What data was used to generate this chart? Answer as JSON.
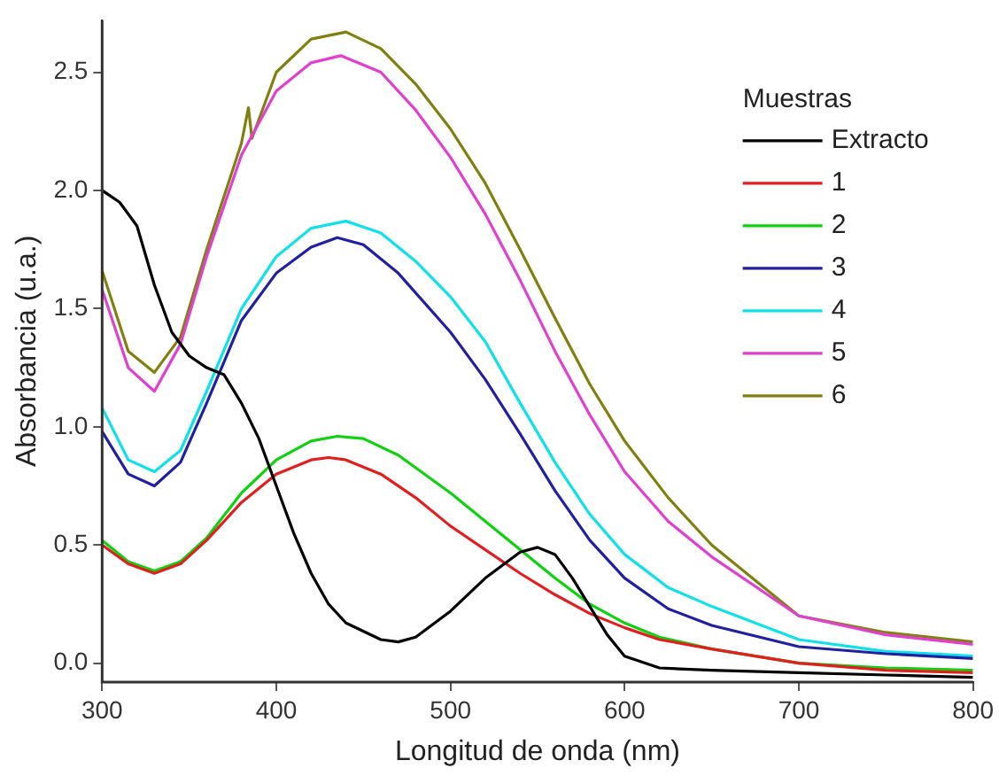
{
  "chart_data": {
    "type": "line",
    "xlabel": "Longitud de onda (nm)",
    "ylabel": "Absorbancia (u.a.)",
    "legend_title": "Muestras",
    "legend": "top right",
    "grid": false,
    "marker": "none",
    "line_style": "solid",
    "xlim": [
      300,
      800
    ],
    "xticks": [
      300,
      400,
      500,
      600,
      700,
      800
    ],
    "ylim": [
      -0.08,
      2.72
    ],
    "yticks": [
      {
        "value": 0,
        "label": "0.0"
      },
      0.5,
      {
        "value": 1,
        "label": "1.0"
      },
      1.5,
      {
        "value": 2,
        "label": "2.0"
      },
      2.5
    ],
    "series": [
      {
        "name": "Extracto",
        "color": "#000000",
        "x": [
          300,
          310,
          320,
          330,
          340,
          350,
          360,
          370,
          380,
          390,
          400,
          410,
          420,
          430,
          440,
          460,
          470,
          480,
          500,
          520,
          540,
          550,
          560,
          570,
          580,
          590,
          600,
          620,
          650,
          700,
          750,
          800
        ],
        "values": [
          2.0,
          1.95,
          1.85,
          1.6,
          1.4,
          1.3,
          1.25,
          1.22,
          1.1,
          0.95,
          0.75,
          0.55,
          0.38,
          0.25,
          0.17,
          0.1,
          0.09,
          0.11,
          0.22,
          0.36,
          0.47,
          0.49,
          0.46,
          0.36,
          0.24,
          0.12,
          0.03,
          -0.02,
          -0.03,
          -0.04,
          -0.05,
          -0.06
        ]
      },
      {
        "name": "1",
        "color": "#e02020",
        "x": [
          300,
          315,
          330,
          345,
          360,
          380,
          400,
          420,
          430,
          440,
          460,
          480,
          500,
          520,
          540,
          560,
          580,
          600,
          620,
          650,
          700,
          750,
          800
        ],
        "values": [
          0.5,
          0.42,
          0.38,
          0.42,
          0.52,
          0.68,
          0.8,
          0.86,
          0.87,
          0.86,
          0.8,
          0.7,
          0.58,
          0.48,
          0.38,
          0.29,
          0.21,
          0.15,
          0.1,
          0.06,
          0.0,
          -0.03,
          -0.04
        ]
      },
      {
        "name": "2",
        "color": "#10d010",
        "x": [
          300,
          315,
          330,
          345,
          360,
          380,
          400,
          420,
          435,
          450,
          470,
          500,
          520,
          540,
          560,
          580,
          600,
          620,
          650,
          700,
          750,
          800
        ],
        "values": [
          0.52,
          0.43,
          0.39,
          0.43,
          0.53,
          0.72,
          0.86,
          0.94,
          0.96,
          0.95,
          0.88,
          0.72,
          0.6,
          0.48,
          0.36,
          0.25,
          0.17,
          0.11,
          0.06,
          0.0,
          -0.02,
          -0.03
        ]
      },
      {
        "name": "3",
        "color": "#2020a0",
        "x": [
          300,
          315,
          330,
          345,
          360,
          380,
          400,
          420,
          435,
          450,
          470,
          500,
          520,
          540,
          560,
          580,
          600,
          625,
          650,
          700,
          750,
          800
        ],
        "values": [
          0.98,
          0.8,
          0.75,
          0.85,
          1.1,
          1.45,
          1.65,
          1.76,
          1.8,
          1.77,
          1.65,
          1.4,
          1.2,
          0.97,
          0.73,
          0.52,
          0.36,
          0.23,
          0.16,
          0.07,
          0.04,
          0.02
        ]
      },
      {
        "name": "4",
        "color": "#10e0e8",
        "x": [
          300,
          315,
          330,
          345,
          360,
          380,
          400,
          420,
          440,
          460,
          480,
          500,
          520,
          540,
          560,
          580,
          600,
          625,
          650,
          700,
          750,
          800
        ],
        "values": [
          1.08,
          0.86,
          0.81,
          0.9,
          1.15,
          1.5,
          1.72,
          1.84,
          1.87,
          1.82,
          1.7,
          1.55,
          1.36,
          1.1,
          0.85,
          0.63,
          0.46,
          0.32,
          0.24,
          0.1,
          0.05,
          0.03
        ]
      },
      {
        "name": "5",
        "color": "#e040d0",
        "x": [
          300,
          315,
          330,
          345,
          360,
          380,
          400,
          420,
          437,
          460,
          480,
          500,
          520,
          540,
          560,
          580,
          600,
          625,
          650,
          700,
          750,
          800
        ],
        "values": [
          1.58,
          1.25,
          1.15,
          1.35,
          1.72,
          2.15,
          2.42,
          2.54,
          2.57,
          2.5,
          2.34,
          2.14,
          1.9,
          1.62,
          1.32,
          1.05,
          0.81,
          0.6,
          0.45,
          0.2,
          0.12,
          0.08
        ]
      },
      {
        "name": "6",
        "color": "#808010",
        "x": [
          300,
          315,
          330,
          345,
          360,
          380,
          384,
          386,
          400,
          420,
          440,
          460,
          480,
          500,
          520,
          540,
          560,
          580,
          600,
          625,
          650,
          700,
          750,
          800
        ],
        "values": [
          1.66,
          1.32,
          1.23,
          1.38,
          1.75,
          2.2,
          2.35,
          2.22,
          2.5,
          2.64,
          2.67,
          2.6,
          2.45,
          2.26,
          2.03,
          1.75,
          1.46,
          1.18,
          0.94,
          0.7,
          0.5,
          0.2,
          0.13,
          0.09
        ]
      }
    ]
  }
}
